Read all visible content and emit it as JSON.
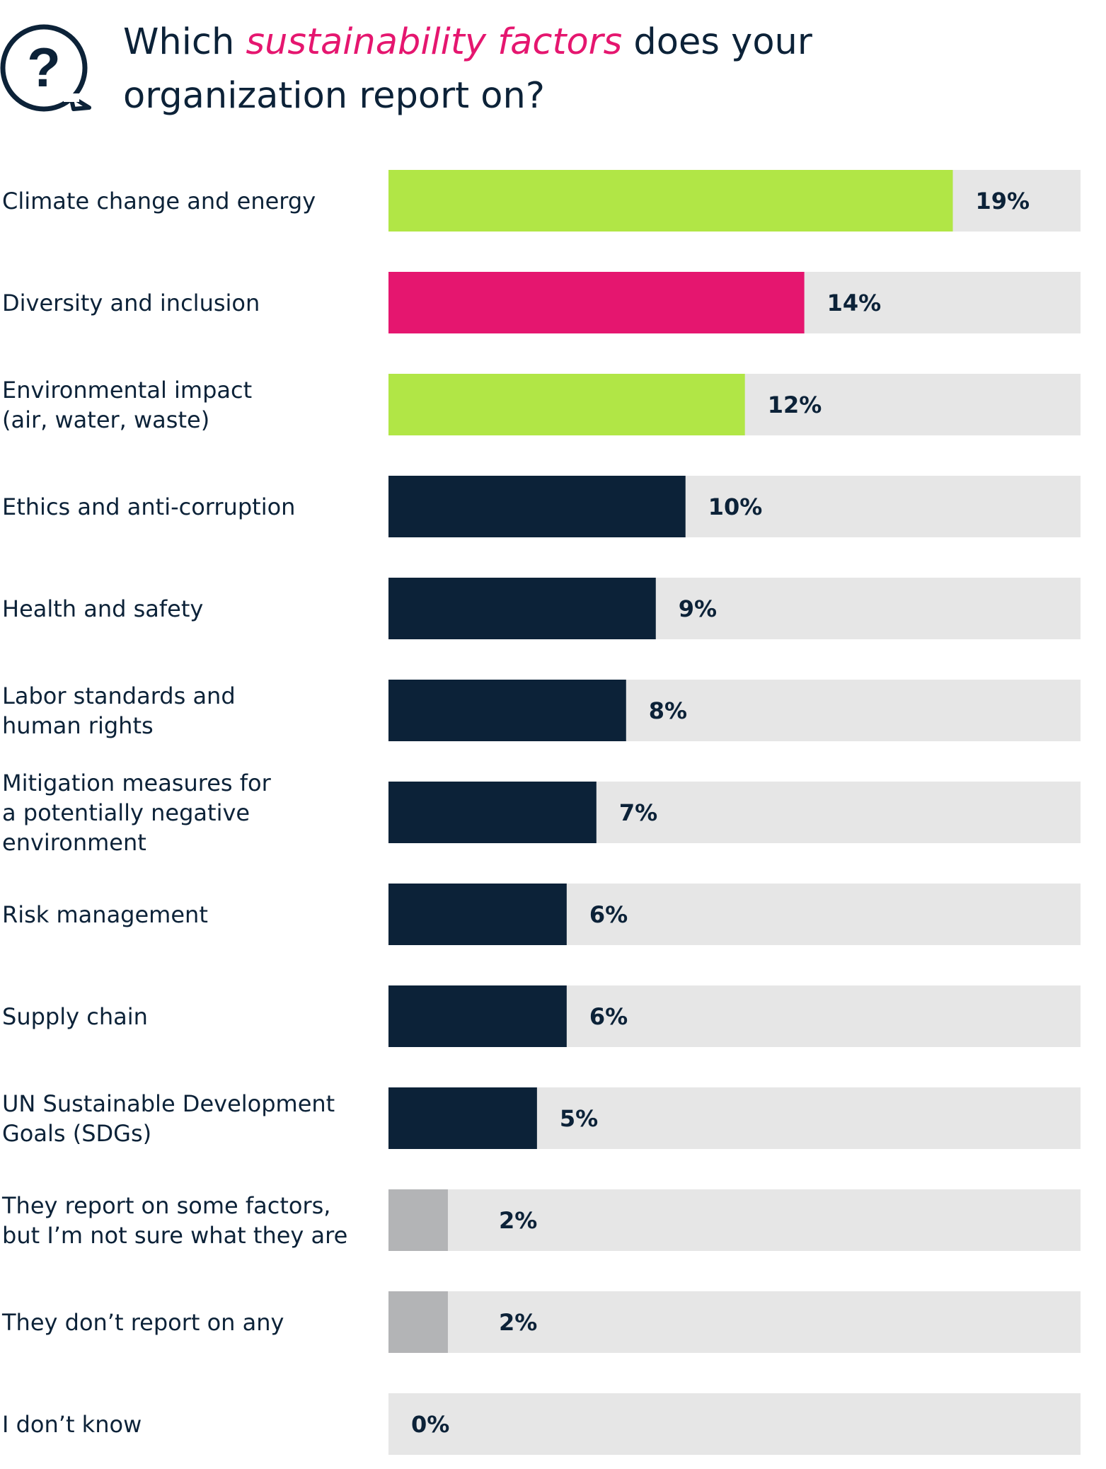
{
  "header": {
    "title_part1": "Which ",
    "title_highlight": "sustainability factors",
    "title_part2": " does your organization report on?",
    "icon": "question-speech-bubble-icon"
  },
  "colors": {
    "green": "#b1e646",
    "pink": "#e5166f",
    "navy": "#0c2238",
    "grey": "#b3b4b6",
    "track": "#e6e6e6"
  },
  "chart_data": {
    "type": "bar",
    "orientation": "horizontal",
    "title": "Which sustainability factors does your organization report on?",
    "xlim": [
      0,
      23.3
    ],
    "categories": [
      "Climate change and energy",
      "Diversity and inclusion",
      "Environmental impact\n(air, water, waste)",
      "Ethics and anti-corruption",
      "Health and safety",
      "Labor standards and\nhuman rights",
      "Mitigation measures for\na potentially negative\nenvironment",
      "Risk management",
      "Supply chain",
      "UN Sustainable Development\nGoals  (SDGs)",
      "They report on some factors,\nbut I’m not sure what they are",
      "They don’t report on any",
      "I don’t know"
    ],
    "values": [
      19,
      14,
      12,
      10,
      9,
      8,
      7,
      6,
      6,
      5,
      2,
      2,
      0
    ],
    "value_labels": [
      "19%",
      "14%",
      "12%",
      "10%",
      "9%",
      "8%",
      "7%",
      "6%",
      "6%",
      "5%",
      "2%",
      "2%",
      "0%"
    ],
    "bar_colors": [
      "green",
      "pink",
      "green",
      "navy",
      "navy",
      "navy",
      "navy",
      "navy",
      "navy",
      "navy",
      "grey",
      "grey",
      "grey"
    ]
  }
}
